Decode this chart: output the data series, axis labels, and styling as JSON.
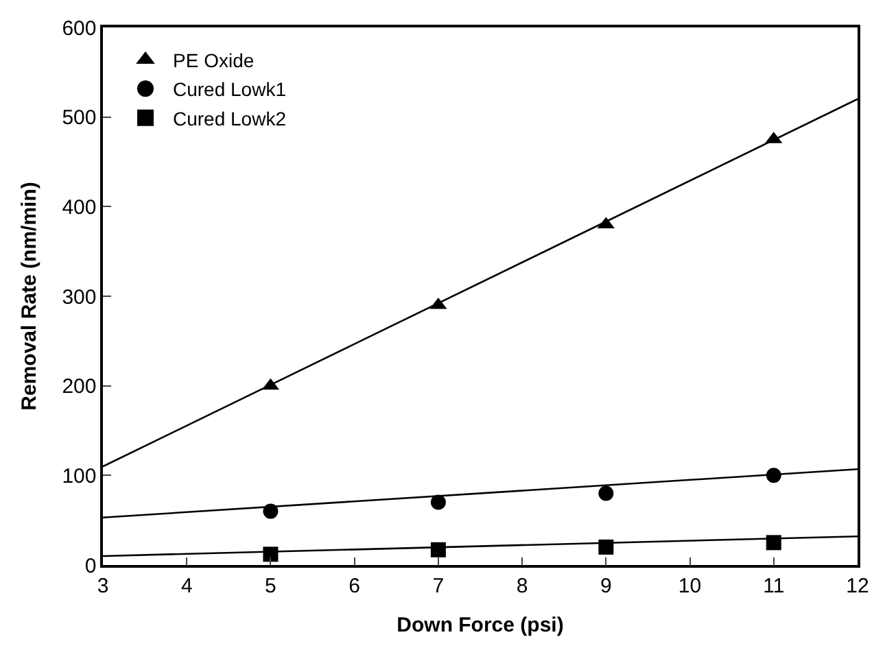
{
  "chart_data": {
    "type": "scatter",
    "xlabel": "Down Force (psi)",
    "ylabel": "Removal Rate (nm/min)",
    "xlim": [
      3,
      12
    ],
    "xticks": [
      3,
      4,
      5,
      6,
      7,
      8,
      9,
      10,
      11,
      12
    ],
    "ylim": [
      0,
      600
    ],
    "yticks": [
      0,
      100,
      200,
      300,
      400,
      500,
      600
    ],
    "legend": "top left",
    "series": [
      {
        "name": "PE Oxide",
        "color": "#000000",
        "marker": "triangle",
        "x": [
          5,
          7,
          9,
          11
        ],
        "values": [
          200,
          290,
          380,
          475
        ]
      },
      {
        "name": "Cured Lowk1",
        "color": "#000000",
        "marker": "circle",
        "x": [
          5,
          7,
          9,
          11
        ],
        "values": [
          60,
          70,
          80,
          100
        ]
      },
      {
        "name": "Cured Lowk2",
        "color": "#000000",
        "marker": "square",
        "x": [
          5,
          7,
          9,
          11
        ],
        "values": [
          12,
          17,
          20,
          25
        ]
      },
      {
        "type": "line",
        "color": "#000000",
        "marker": "none",
        "x": [
          3,
          12
        ],
        "values": [
          110,
          520
        ]
      },
      {
        "type": "line",
        "color": "#000000",
        "marker": "none",
        "x": [
          3,
          12
        ],
        "values": [
          53,
          107
        ]
      },
      {
        "type": "line",
        "color": "#000000",
        "marker": "none",
        "x": [
          3,
          12
        ],
        "values": [
          10,
          32
        ]
      }
    ]
  }
}
